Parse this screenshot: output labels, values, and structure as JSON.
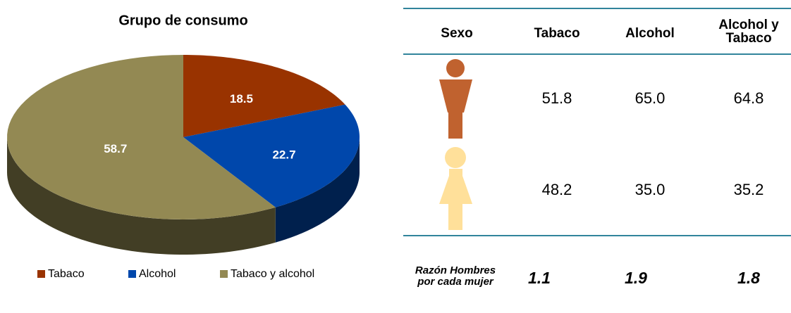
{
  "chart_data": {
    "type": "pie",
    "title": "Grupo de consumo",
    "categories": [
      "Tabaco",
      "Alcohol",
      "Tabaco y alcohol"
    ],
    "values": [
      18.5,
      22.7,
      58.7
    ],
    "colors": [
      "#993300",
      "#0047ab",
      "#938953"
    ],
    "legend": "bottom"
  },
  "table": {
    "header": [
      "Sexo",
      "Tabaco",
      "Alcohol",
      "Alcohol y Tabaco"
    ],
    "rows": [
      [
        "51.8",
        "65.0",
        "64.8"
      ],
      [
        "48.2",
        "35.0",
        "35.2"
      ]
    ],
    "ratio": {
      "label": "Razón Hombres por cada mujer",
      "values": [
        "1.1",
        "1.9",
        "1.8"
      ]
    }
  }
}
